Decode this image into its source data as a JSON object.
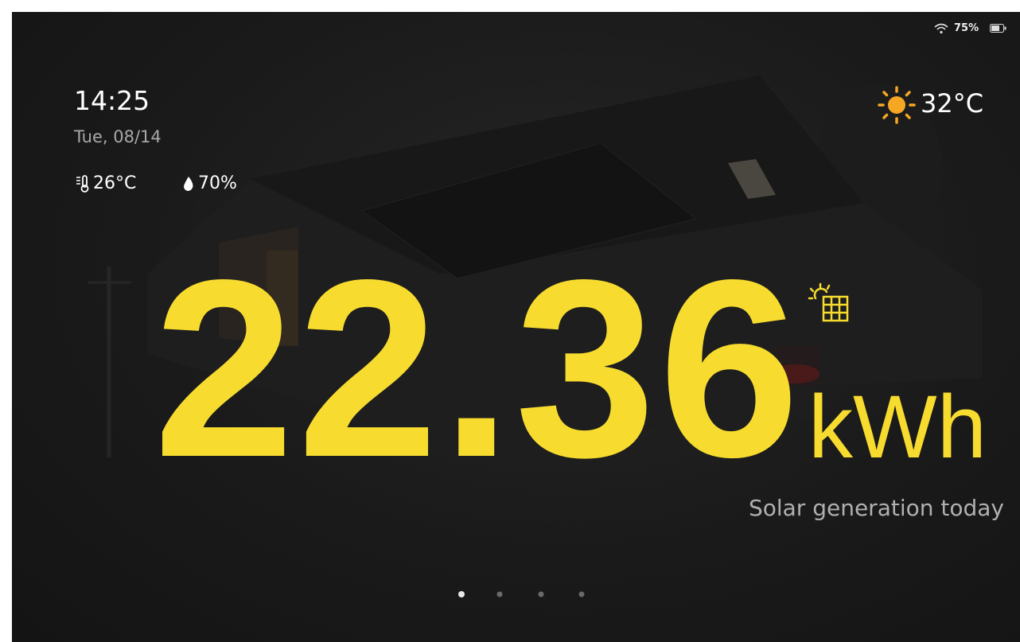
{
  "status_bar": {
    "battery": "75%"
  },
  "clock": {
    "time": "14:25",
    "date": "Tue, 08/14"
  },
  "indoor": {
    "temperature": "26°C",
    "humidity": "70%"
  },
  "weather": {
    "temperature": "32°C"
  },
  "energy": {
    "value": "22.36",
    "unit": "kWh",
    "caption": "Solar generation today"
  }
}
